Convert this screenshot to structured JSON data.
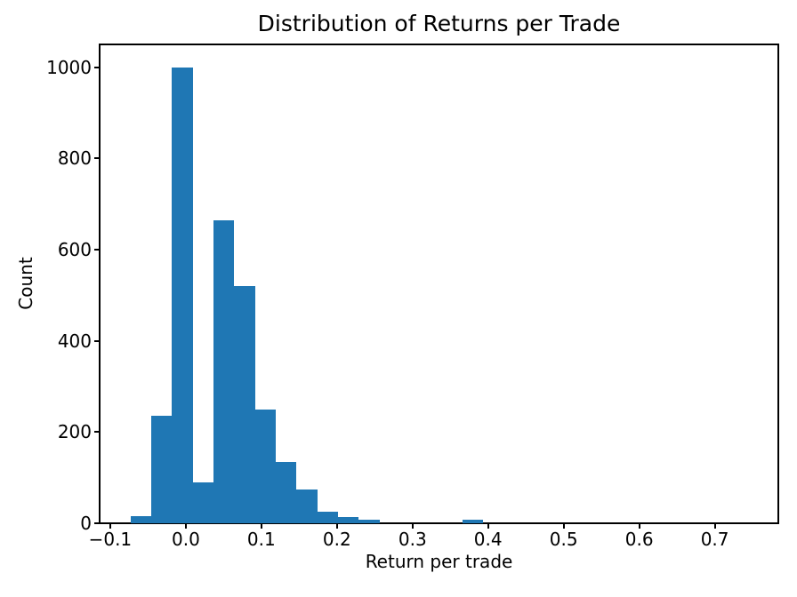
{
  "chart_data": {
    "type": "bar",
    "subtype": "histogram",
    "title": "Distribution of Returns per Trade",
    "xlabel": "Return per trade",
    "ylabel": "Count",
    "bar_color": "#1f77b4",
    "axis_color": "#000000",
    "background_color": "#ffffff",
    "grid": "off",
    "legend": "none",
    "xlim": [
      -0.114,
      0.784
    ],
    "ylim": [
      0,
      1050
    ],
    "bins": {
      "start": -0.0733,
      "width": 0.02745
    },
    "counts": [
      15,
      235,
      1000,
      90,
      665,
      520,
      250,
      135,
      75,
      25,
      13,
      8,
      0,
      0,
      0,
      0,
      8
    ],
    "xticks": [
      {
        "v": -0.1,
        "label": "−0.1"
      },
      {
        "v": 0.0,
        "label": "0.0"
      },
      {
        "v": 0.1,
        "label": "0.1"
      },
      {
        "v": 0.2,
        "label": "0.2"
      },
      {
        "v": 0.3,
        "label": "0.3"
      },
      {
        "v": 0.4,
        "label": "0.4"
      },
      {
        "v": 0.5,
        "label": "0.5"
      },
      {
        "v": 0.6,
        "label": "0.6"
      },
      {
        "v": 0.7,
        "label": "0.7"
      }
    ],
    "yticks": [
      {
        "v": 0,
        "label": "0"
      },
      {
        "v": 200,
        "label": "200"
      },
      {
        "v": 400,
        "label": "400"
      },
      {
        "v": 600,
        "label": "600"
      },
      {
        "v": 800,
        "label": "800"
      },
      {
        "v": 1000,
        "label": "1000"
      }
    ]
  }
}
